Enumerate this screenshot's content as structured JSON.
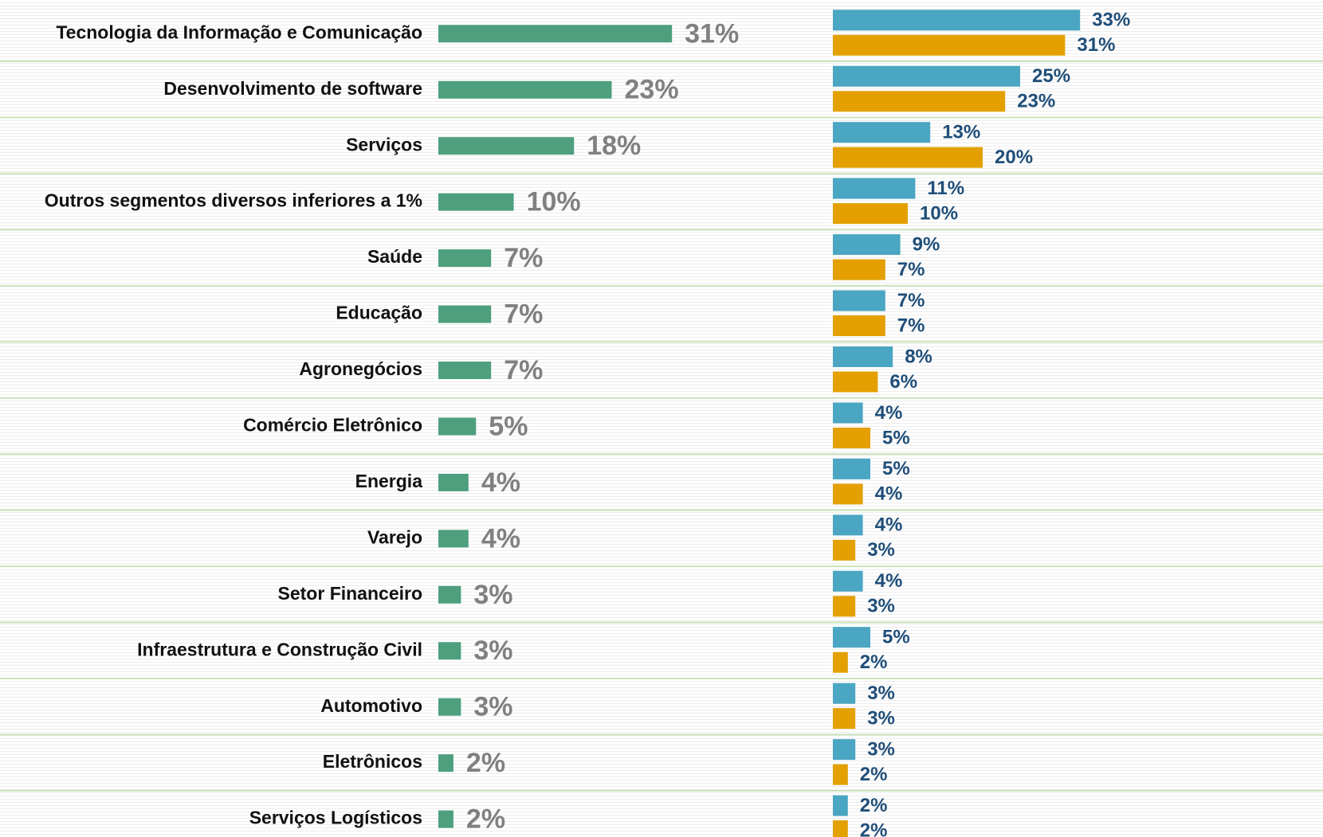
{
  "chart_data": [
    {
      "type": "bar",
      "orientation": "horizontal",
      "categories": [
        "Tecnologia da Informação e Comunicação",
        "Desenvolvimento de software",
        "Serviços",
        "Outros segmentos diversos inferiores a 1%",
        "Saúde",
        "Educação",
        "Agronegócios",
        "Comércio Eletrônico",
        "Energia",
        "Varejo",
        "Setor Financeiro",
        "Infraestrutura e Construção Civil",
        "Automotivo",
        "Eletrônicos",
        "Serviços Logísticos"
      ],
      "color": "#4e9f7e",
      "values": [
        31,
        23,
        18,
        10,
        7,
        7,
        7,
        5,
        4,
        4,
        3,
        3,
        3,
        2,
        2
      ],
      "value_labels": [
        "31%",
        "23%",
        "18%",
        "10%",
        "7%",
        "7%",
        "7%",
        "5%",
        "4%",
        "4%",
        "3%",
        "3%",
        "3%",
        "2%",
        "2%"
      ],
      "xlim": [
        0,
        35
      ]
    },
    {
      "type": "bar",
      "orientation": "horizontal",
      "series": [
        {
          "color": "#4aa6c2",
          "values": [
            33,
            25,
            13,
            11,
            9,
            7,
            8,
            4,
            5,
            4,
            4,
            5,
            3,
            3,
            2
          ],
          "value_labels": [
            "33%",
            "25%",
            "13%",
            "11%",
            "9%",
            "7%",
            "8%",
            "4%",
            "5%",
            "4%",
            "4%",
            "5%",
            "3%",
            "3%",
            "2%"
          ]
        },
        {
          "color": "#e3a000",
          "values": [
            31,
            23,
            20,
            10,
            7,
            7,
            6,
            5,
            4,
            3,
            3,
            2,
            3,
            2,
            2
          ],
          "value_labels": [
            "31%",
            "23%",
            "20%",
            "10%",
            "7%",
            "7%",
            "6%",
            "5%",
            "4%",
            "3%",
            "3%",
            "2%",
            "3%",
            "2%",
            "2%"
          ]
        }
      ],
      "xlim": [
        0,
        35
      ]
    }
  ]
}
